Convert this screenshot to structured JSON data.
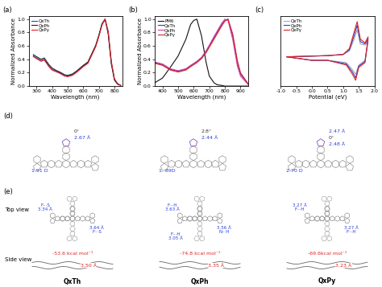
{
  "chart_data": [
    {
      "type": "line",
      "panel_label": "(a)",
      "x_label": "Wavelength (nm)",
      "y_label": "Normalized Absorbance",
      "x": [
        280,
        300,
        330,
        350,
        380,
        400,
        430,
        450,
        480,
        500,
        530,
        560,
        580,
        600,
        630,
        650,
        680,
        700,
        720,
        740,
        760,
        780,
        800,
        820,
        840
      ],
      "series": [
        {
          "name": "QxTh",
          "color": "#2b3fd6",
          "values": [
            0.45,
            0.42,
            0.38,
            0.4,
            0.3,
            0.25,
            0.22,
            0.2,
            0.16,
            0.15,
            0.17,
            0.22,
            0.26,
            0.3,
            0.35,
            0.45,
            0.6,
            0.75,
            0.92,
            1.0,
            0.8,
            0.35,
            0.1,
            0.03,
            0.01
          ]
        },
        {
          "name": "QxPh",
          "color": "#222222",
          "values": [
            0.47,
            0.44,
            0.4,
            0.42,
            0.32,
            0.27,
            0.23,
            0.21,
            0.17,
            0.16,
            0.18,
            0.23,
            0.27,
            0.31,
            0.36,
            0.46,
            0.61,
            0.76,
            0.93,
            1.0,
            0.78,
            0.33,
            0.09,
            0.03,
            0.01
          ]
        },
        {
          "name": "QxPy",
          "color": "#e02020",
          "values": [
            0.44,
            0.41,
            0.37,
            0.39,
            0.29,
            0.24,
            0.21,
            0.19,
            0.15,
            0.14,
            0.16,
            0.21,
            0.25,
            0.29,
            0.34,
            0.44,
            0.59,
            0.74,
            0.91,
            1.0,
            0.82,
            0.37,
            0.11,
            0.04,
            0.01
          ]
        }
      ],
      "xlim": [
        250,
        850
      ],
      "xticks": [
        300,
        400,
        500,
        600,
        700,
        800
      ],
      "ylim": [
        0.0,
        1.05
      ],
      "yticks": [
        {
          "value": 0.0,
          "label": "0.0"
        },
        {
          "value": 0.2,
          "label": "0.2"
        },
        {
          "value": 0.4,
          "label": "0.4"
        },
        {
          "value": 0.6,
          "label": "0.6"
        },
        {
          "value": 0.8,
          "label": "0.8"
        },
        {
          "value": 1.0,
          "label": "1.0"
        }
      ],
      "legend": "upper left"
    },
    {
      "type": "line",
      "panel_label": "(b)",
      "x_label": "Wavelength (nm)",
      "y_label": "Normalized Absorbance",
      "x": [
        350,
        400,
        450,
        500,
        550,
        580,
        600,
        620,
        650,
        680,
        700,
        730,
        750,
        780,
        800,
        820,
        850,
        880,
        900,
        950
      ],
      "series": [
        {
          "name": "PM6",
          "color": "#111111",
          "values": [
            0.05,
            0.12,
            0.28,
            0.45,
            0.7,
            0.92,
            0.98,
            1.0,
            0.75,
            0.35,
            0.15,
            0.05,
            0.02,
            0.01,
            0.0,
            0.0,
            0.0,
            0.0,
            0.0,
            0.0
          ]
        },
        {
          "name": "QxTh",
          "color": "#2b3fd6",
          "values": [
            0.35,
            0.32,
            0.25,
            0.22,
            0.25,
            0.3,
            0.33,
            0.36,
            0.42,
            0.52,
            0.6,
            0.72,
            0.8,
            0.92,
            0.98,
            1.0,
            0.75,
            0.35,
            0.18,
            0.03
          ]
        },
        {
          "name": "QxPh",
          "color": "#d63c9c",
          "values": [
            0.36,
            0.33,
            0.26,
            0.23,
            0.26,
            0.31,
            0.34,
            0.37,
            0.43,
            0.53,
            0.61,
            0.74,
            0.82,
            0.94,
            1.0,
            0.98,
            0.7,
            0.3,
            0.15,
            0.02
          ]
        },
        {
          "name": "QxPy",
          "color": "#e02020",
          "values": [
            0.34,
            0.31,
            0.24,
            0.21,
            0.24,
            0.29,
            0.32,
            0.35,
            0.41,
            0.5,
            0.58,
            0.7,
            0.78,
            0.9,
            0.97,
            1.0,
            0.78,
            0.38,
            0.2,
            0.03
          ]
        }
      ],
      "xlim": [
        350,
        950
      ],
      "xticks": [
        400,
        500,
        600,
        700,
        800,
        900
      ],
      "ylim": [
        0.0,
        1.05
      ],
      "yticks": [
        {
          "value": 0.0,
          "label": "0.0"
        },
        {
          "value": 0.2,
          "label": "0.2"
        },
        {
          "value": 0.4,
          "label": "0.4"
        },
        {
          "value": 0.6,
          "label": "0.6"
        },
        {
          "value": 0.8,
          "label": "0.8"
        },
        {
          "value": 1.0,
          "label": "1.0"
        }
      ],
      "legend": "upper left"
    },
    {
      "type": "line",
      "panel_label": "(c)",
      "x_label": "Potential (eV)",
      "series": [
        {
          "name": "QxTh",
          "color": "#aaaaaa",
          "x": [
            -0.8,
            0.0,
            0.5,
            1.0,
            1.2,
            1.35,
            1.45,
            1.55,
            1.7,
            1.8,
            1.7,
            1.5,
            1.4,
            1.3,
            1.1,
            0.5,
            0.0,
            -0.8
          ],
          "values": [
            0.05,
            0.08,
            0.1,
            0.15,
            0.3,
            0.8,
            1.2,
            0.6,
            0.55,
            0.7,
            -0.1,
            -0.3,
            -0.7,
            -0.5,
            -0.2,
            -0.1,
            -0.1,
            0.05
          ]
        },
        {
          "name": "QxPh",
          "color": "#2b3fd6",
          "x": [
            -0.8,
            0.0,
            0.5,
            1.0,
            1.2,
            1.35,
            1.45,
            1.55,
            1.7,
            1.8,
            1.7,
            1.5,
            1.4,
            1.3,
            1.1,
            0.5,
            0.0,
            -0.8
          ],
          "values": [
            0.05,
            0.08,
            0.1,
            0.15,
            0.35,
            0.95,
            1.4,
            0.7,
            0.6,
            0.8,
            -0.15,
            -0.35,
            -0.85,
            -0.6,
            -0.25,
            -0.1,
            -0.1,
            0.05
          ]
        },
        {
          "name": "QxPy",
          "color": "#e02020",
          "x": [
            -0.8,
            0.0,
            0.5,
            1.0,
            1.2,
            1.35,
            1.45,
            1.55,
            1.7,
            1.8,
            1.7,
            1.5,
            1.4,
            1.3,
            1.1,
            0.5,
            0.0,
            -0.8
          ],
          "values": [
            0.05,
            0.08,
            0.1,
            0.15,
            0.4,
            1.1,
            1.55,
            0.8,
            0.65,
            0.9,
            -0.2,
            -0.4,
            -0.95,
            -0.7,
            -0.3,
            -0.1,
            -0.1,
            0.05
          ]
        }
      ],
      "xlim": [
        -1.0,
        2.0
      ],
      "xticks": [
        {
          "value": -1.0,
          "label": "-1.0"
        },
        {
          "value": -0.5,
          "label": "-0.5"
        },
        {
          "value": 0.0,
          "label": "0.0"
        },
        {
          "value": 0.5,
          "label": "0.5"
        },
        {
          "value": 1.0,
          "label": "1.0"
        },
        {
          "value": 1.5,
          "label": "1.5"
        },
        {
          "value": 2.0,
          "label": "2.0"
        }
      ],
      "ylim": [
        -1.2,
        1.8
      ],
      "yticks": [],
      "tick_labels": "x",
      "legend": "upper left"
    }
  ],
  "panel_d": {
    "panel_label": "(d)",
    "structures": [
      {
        "texts": [
          "0°",
          "2.67 Å"
        ],
        "dipole": "1.91 D"
      },
      {
        "texts": [
          "2.8°",
          "2.44 Å"
        ],
        "dipole": "1. 89D"
      },
      {
        "texts": [
          "2.47 Å",
          "0°",
          "2.48 Å"
        ],
        "dipole": "2.70 D"
      }
    ]
  },
  "panel_e": {
    "panel_label": "(e)",
    "top_view_label": "Top view",
    "side_view_label": "Side view",
    "molecules": [
      {
        "name": "QxTh",
        "top_texts": [
          "F···S\n3.34 Å",
          "3.64 Å\nF···S"
        ],
        "energy": "-53.6 kcal mol⁻¹",
        "distance": "3.50 Å"
      },
      {
        "name": "QxPh",
        "top_texts": [
          "F···H\n3.63 Å",
          "3.56 Å\nN···H",
          "F···H\n3.05 Å"
        ],
        "energy": "-74.8 kcal mol⁻¹",
        "distance": "3.35 Å"
      },
      {
        "name": "QxPy",
        "top_texts": [
          "3.27 Å\nF···H",
          "3.27 Å\nF···H"
        ],
        "energy": "-69.6kcal mol⁻¹",
        "distance": "3.23 Å"
      }
    ]
  }
}
